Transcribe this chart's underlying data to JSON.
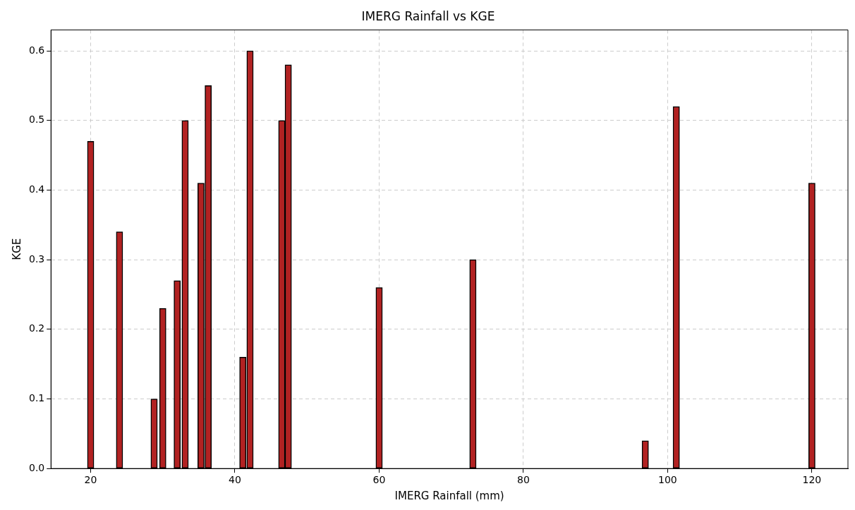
{
  "chart_data": {
    "type": "bar",
    "title": "IMERG Rainfall vs KGE",
    "xlabel": "IMERG Rainfall (mm)",
    "ylabel": "KGE",
    "x": [
      20,
      24,
      28.8,
      30,
      32,
      33.1,
      35.3,
      36.3,
      41.1,
      42.1,
      46.5,
      47.4,
      60,
      73,
      96.9,
      101.2,
      120
    ],
    "values": [
      0.47,
      0.34,
      0.1,
      0.23,
      0.27,
      0.5,
      0.41,
      0.55,
      0.16,
      0.6,
      0.5,
      0.58,
      0.26,
      0.3,
      0.04,
      0.52,
      0.41
    ],
    "color": "#b22222",
    "xlim": [
      14.5,
      125
    ],
    "xticks": [
      20,
      40,
      60,
      80,
      100,
      120
    ],
    "ylim": [
      0,
      0.63
    ],
    "yticks": [
      {
        "value": 0,
        "label": "0.0"
      },
      0.1,
      0.2,
      0.3,
      0.4,
      0.5,
      0.6
    ],
    "grid": true,
    "legend": false
  }
}
